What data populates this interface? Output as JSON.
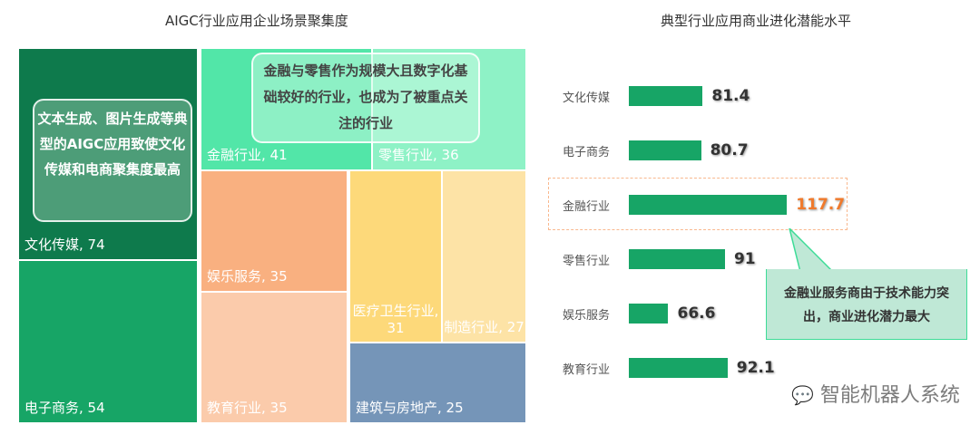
{
  "chart_data": [
    {
      "type": "treemap",
      "title": "AIGC行业应用企业场景聚集度",
      "items": [
        {
          "label": "文化传媒, 74",
          "name": "文化传媒",
          "value": 74,
          "color": "#0e7a4c"
        },
        {
          "label": "电子商务, 54",
          "name": "电子商务",
          "value": 54,
          "color": "#17a566"
        },
        {
          "label": "金融行业, 41",
          "name": "金融行业",
          "value": 41,
          "color": "#52e6a8"
        },
        {
          "label": "零售行业, 36",
          "name": "零售行业",
          "value": 36,
          "color": "#8ef2c6"
        },
        {
          "label": "娱乐服务, 35",
          "name": "娱乐服务",
          "value": 35,
          "color": "#f9b080"
        },
        {
          "label": "教育行业, 35",
          "name": "教育行业",
          "value": 35,
          "color": "#fbcbab"
        },
        {
          "label": "医疗卫生行业, 31",
          "name": "医疗卫生行业",
          "value": 31,
          "color": "#fdd97a"
        },
        {
          "label": "制造行业, 27",
          "name": "制造行业",
          "value": 27,
          "color": "#fde3a6"
        },
        {
          "label": "建筑与房地产, 25",
          "name": "建筑与房地产",
          "value": 25,
          "color": "#7595b8"
        }
      ],
      "annotations": [
        "文本生成、图片生成等典型的AIGC应用致使文化传媒和电商聚集度最高",
        "金融与零售作为规模大且数字化基础较好的行业，也成为了被重点关注的行业"
      ]
    },
    {
      "type": "bar",
      "orientation": "horizontal",
      "title": "典型行业应用商业进化潜能水平",
      "categories": [
        "文化传媒",
        "电子商务",
        "金融行业",
        "零售行业",
        "娱乐服务",
        "教育行业"
      ],
      "values": [
        81.4,
        80.7,
        117.7,
        91,
        66.6,
        92.1
      ],
      "value_labels": [
        "81.4",
        "80.7",
        "117.7",
        "91",
        "66.6",
        "92.1"
      ],
      "highlight": "金融行业",
      "bar_color": "#17a566",
      "highlight_color": "#f07a2c",
      "xlim": [
        50,
        120
      ],
      "annotation": "金融业服务商由于技术能力突出，商业进化潜力最大"
    }
  ],
  "watermark": "智能机器人系统"
}
